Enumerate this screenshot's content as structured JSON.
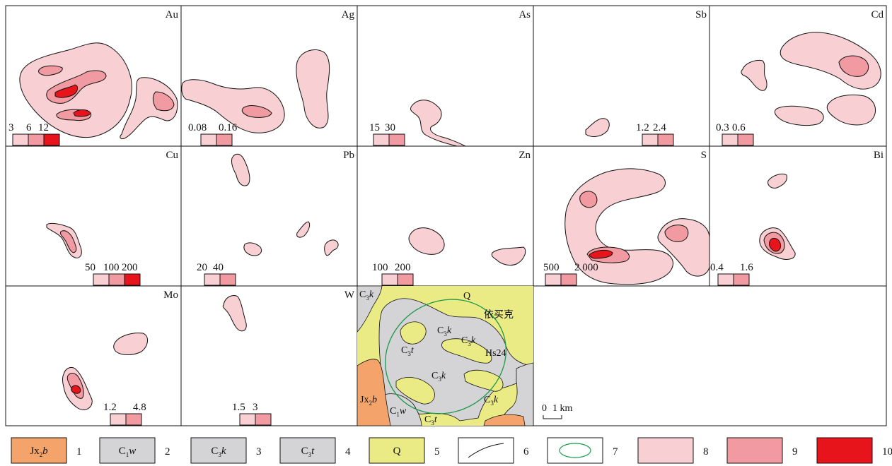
{
  "colors": {
    "level1": "#f8cfd2",
    "level2": "#f19aa1",
    "level3": "#e8141c",
    "quaternary": "#ebeb86",
    "carboniferous": "#d4d4d6",
    "jixian": "#f4a46a",
    "ellipse": "#1a9a4a",
    "outline": "#111111"
  },
  "panels": [
    {
      "element": "Au",
      "scale": [
        "3",
        "6",
        "12"
      ]
    },
    {
      "element": "Ag",
      "scale": [
        "0.08",
        "0.16"
      ]
    },
    {
      "element": "As",
      "scale": [
        "15",
        "30"
      ]
    },
    {
      "element": "Sb",
      "scale": [
        "1.2",
        "2.4"
      ]
    },
    {
      "element": "Cd",
      "scale": [
        "0.3",
        "0.6"
      ]
    },
    {
      "element": "Cu",
      "scale": [
        "50",
        "100",
        "200"
      ]
    },
    {
      "element": "Pb",
      "scale": [
        "20",
        "40"
      ]
    },
    {
      "element": "Zn",
      "scale": [
        "100",
        "200"
      ]
    },
    {
      "element": "S",
      "scale": [
        "500",
        "2 000"
      ]
    },
    {
      "element": "Bi",
      "scale": [
        "0.4",
        "1.6"
      ]
    },
    {
      "element": "Mo",
      "scale": [
        "1.2",
        "4.8"
      ]
    },
    {
      "element": "W",
      "scale": [
        "1.5",
        "3"
      ]
    }
  ],
  "geology": {
    "labels": {
      "q": "Q",
      "place": "依买克",
      "c3k_top": "C3k",
      "c3k_a": "C3k",
      "c3k_b": "C3k",
      "c3k_c": "C3k",
      "c3k_d": "C3k",
      "c3t_a": "C3t",
      "c3t_b": "C3t",
      "c1w": "C1w",
      "jx2b": "Jx2b",
      "hs": "Hs24"
    },
    "scale_bar": [
      "0",
      "1 km"
    ]
  },
  "legend": [
    {
      "num": "1",
      "symbol": "Jx2b"
    },
    {
      "num": "2",
      "symbol": "C1w"
    },
    {
      "num": "3",
      "symbol": "C3k"
    },
    {
      "num": "4",
      "symbol": "C3t"
    },
    {
      "num": "5",
      "symbol": "Q"
    },
    {
      "num": "6",
      "symbol": ""
    },
    {
      "num": "7",
      "symbol": ""
    },
    {
      "num": "8",
      "symbol": ""
    },
    {
      "num": "9",
      "symbol": ""
    },
    {
      "num": "10",
      "symbol": ""
    }
  ]
}
